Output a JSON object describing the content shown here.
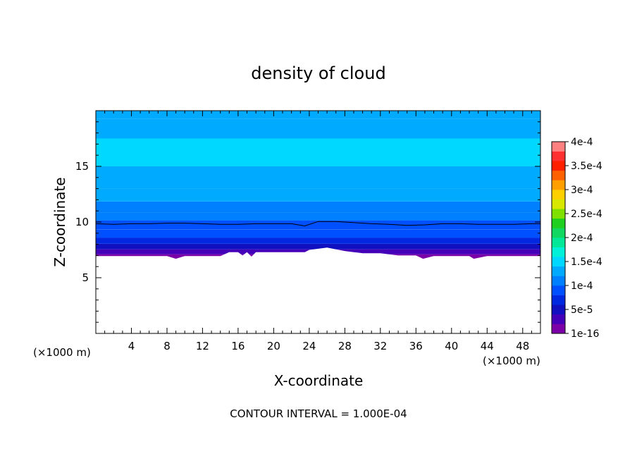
{
  "chart_data": {
    "type": "heatmap",
    "title": "density of cloud",
    "xlabel": "X-coordinate",
    "ylabel": "Z-coordinate",
    "x_unit_left": "(×1000 m)",
    "x_unit_right": "(×1000 m)",
    "footer": "CONTOUR INTERVAL = 1.000E-04",
    "xlim": [
      0,
      50
    ],
    "ylim": [
      0,
      20
    ],
    "x_ticks": [
      4,
      8,
      12,
      16,
      20,
      24,
      28,
      32,
      36,
      40,
      44,
      48
    ],
    "y_ticks": [
      5,
      10,
      15
    ],
    "colorbar": {
      "min": 1e-16,
      "max": 0.0004,
      "labels": [
        {
          "value": 1e-16,
          "text": "1e-16"
        },
        {
          "value": 5e-05,
          "text": "5e-5"
        },
        {
          "value": 0.0001,
          "text": "1e-4"
        },
        {
          "value": 0.00015,
          "text": "1.5e-4"
        },
        {
          "value": 0.0002,
          "text": "2e-4"
        },
        {
          "value": 0.00025,
          "text": "2.5e-4"
        },
        {
          "value": 0.0003,
          "text": "3e-4"
        },
        {
          "value": 0.00035,
          "text": "3.5e-4"
        },
        {
          "value": 0.0004,
          "text": "4e-4"
        }
      ],
      "colors": [
        "#7b00a8",
        "#4400b8",
        "#1010c0",
        "#0028e0",
        "#0050ff",
        "#0080ff",
        "#00aaff",
        "#00d8ff",
        "#00f0d8",
        "#00e898",
        "#10d860",
        "#20d020",
        "#80e000",
        "#d8e800",
        "#ffd000",
        "#ffa000",
        "#ff6000",
        "#ff2000",
        "#ff3030",
        "#ff8080"
      ]
    },
    "profile": [
      {
        "z": 6.9,
        "value": 1e-05
      },
      {
        "z": 7.3,
        "value": 3e-05
      },
      {
        "z": 7.8,
        "value": 5e-05
      },
      {
        "z": 8.3,
        "value": 7e-05
      },
      {
        "z": 8.9,
        "value": 9e-05
      },
      {
        "z": 9.8,
        "value": 0.0001
      },
      {
        "z": 10.5,
        "value": 0.00011
      },
      {
        "z": 11.2,
        "value": 0.00012
      },
      {
        "z": 12.5,
        "value": 0.00013
      },
      {
        "z": 13.5,
        "value": 0.00014
      },
      {
        "z": 16.5,
        "value": 0.00015
      },
      {
        "z": 18.5,
        "value": 0.00014
      },
      {
        "z": 20.0,
        "value": 0.00013
      }
    ],
    "contour_line": {
      "value": 0.0001,
      "x": [
        0,
        2,
        4,
        6,
        8,
        10,
        12,
        14,
        16,
        18,
        20,
        22,
        23.5,
        25,
        27,
        29,
        31,
        33,
        35,
        37,
        39,
        41,
        43,
        45,
        47,
        49,
        50
      ],
      "z": [
        9.85,
        9.8,
        9.85,
        9.85,
        9.9,
        9.9,
        9.85,
        9.8,
        9.8,
        9.85,
        9.85,
        9.85,
        9.65,
        10.05,
        10.05,
        9.95,
        9.85,
        9.8,
        9.7,
        9.75,
        9.85,
        9.85,
        9.8,
        9.8,
        9.8,
        9.85,
        9.85
      ]
    },
    "bottom_edge": {
      "x": [
        0,
        2,
        4,
        6,
        8,
        9,
        10,
        12,
        14,
        15,
        16,
        16.5,
        17,
        17.5,
        18,
        20,
        22,
        23.5,
        24,
        26,
        28,
        29,
        30,
        32,
        34,
        36,
        36.8,
        38,
        40,
        42,
        42.5,
        44,
        46,
        48,
        50
      ],
      "z": [
        6.95,
        6.95,
        6.95,
        6.95,
        6.95,
        6.7,
        6.95,
        6.95,
        6.95,
        7.3,
        7.3,
        7.0,
        7.3,
        6.9,
        7.3,
        7.3,
        7.3,
        7.3,
        7.5,
        7.7,
        7.4,
        7.3,
        7.2,
        7.2,
        7.0,
        7.0,
        6.7,
        6.95,
        6.95,
        6.95,
        6.7,
        6.95,
        6.95,
        6.95,
        6.95
      ]
    }
  }
}
